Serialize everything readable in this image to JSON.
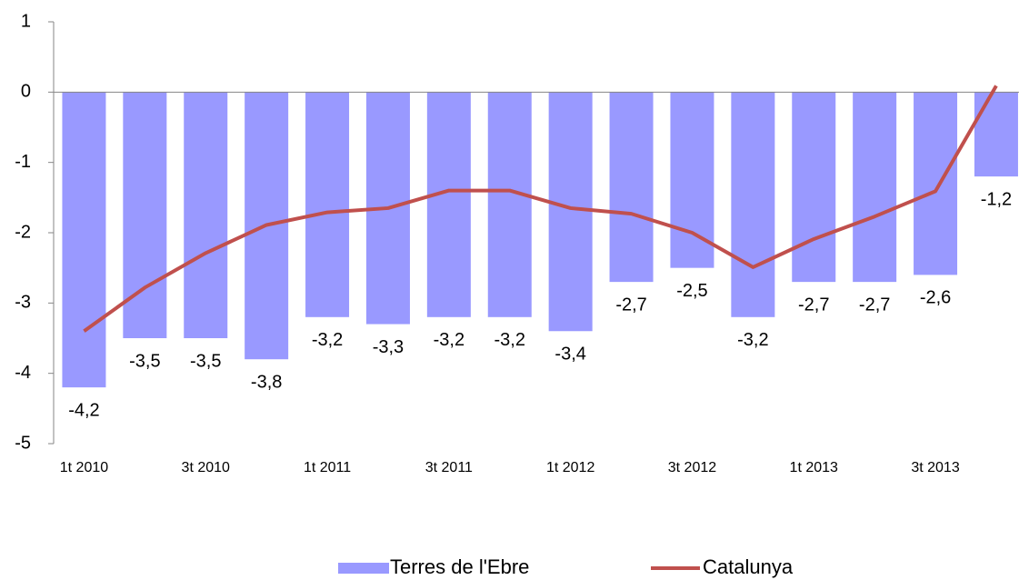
{
  "chart_data": {
    "type": "bar",
    "categories": [
      "1t 2010",
      null,
      "3t 2010",
      null,
      "1t 2011",
      null,
      "3t 2011",
      null,
      "1t 2012",
      null,
      "3t 2012",
      null,
      "1t 2013",
      null,
      "3t 2013",
      null
    ],
    "series": [
      {
        "name": "Terres de l'Ebre",
        "type": "bar",
        "color": "#9999ff",
        "values": [
          -4.2,
          -3.5,
          -3.5,
          -3.8,
          -3.2,
          -3.3,
          -3.2,
          -3.2,
          -3.4,
          -2.7,
          -2.5,
          -3.2,
          -2.7,
          -2.7,
          -2.6,
          -1.2
        ],
        "value_labels": [
          "-4,2",
          "-3,5",
          "-3,5",
          "-3,8",
          "-3,2",
          "-3,3",
          "-3,2",
          "-3,2",
          "-3,4",
          "-2,7",
          "-2,5",
          "-3,2",
          "-2,7",
          "-2,7",
          "-2,6",
          "-1,2"
        ]
      },
      {
        "name": "Catalunya",
        "type": "line",
        "color": "#c0504d",
        "values": [
          -3.4,
          -2.78,
          -2.29,
          -1.89,
          -1.71,
          -1.65,
          -1.4,
          -1.4,
          -1.65,
          -1.73,
          -2.0,
          -2.49,
          -2.09,
          -1.77,
          -1.41,
          0.09
        ]
      }
    ],
    "ylim": [
      -5,
      1
    ],
    "yticks": [
      -5,
      -4,
      -3,
      -2,
      -1,
      0,
      1
    ],
    "grid": false,
    "legend": "bottom"
  }
}
